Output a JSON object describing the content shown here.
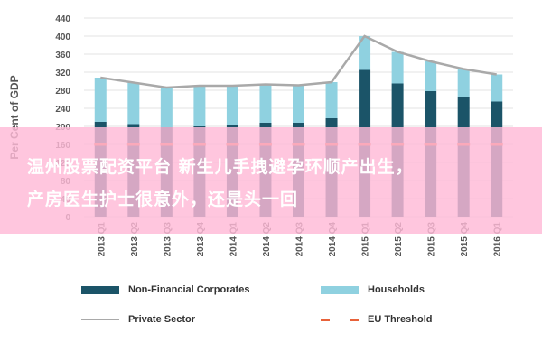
{
  "chart_data": {
    "type": "bar",
    "ylabel": "Per Cent of GDP",
    "ylim": [
      0,
      440
    ],
    "yticks": [
      0,
      40,
      80,
      120,
      160,
      200,
      240,
      280,
      320,
      360,
      400,
      440
    ],
    "categories": [
      "2013 Q1",
      "2013 Q2",
      "2013 Q3",
      "2013 Q4",
      "2014 Q1",
      "2014 Q2",
      "2014 Q3",
      "2014 Q4",
      "2015 Q1",
      "2015 Q2",
      "2015 Q3",
      "2015 Q4",
      "2016 Q1"
    ],
    "series": [
      {
        "name": "Non-Financial Corporates",
        "type": "bar",
        "stack": "private",
        "color": "#1b5468",
        "values": [
          210,
          205,
          198,
          200,
          202,
          208,
          208,
          218,
          325,
          295,
          278,
          265,
          255
        ]
      },
      {
        "name": "Households",
        "type": "bar",
        "stack": "private",
        "color": "#8fd1e0",
        "values": [
          98,
          92,
          88,
          90,
          88,
          85,
          83,
          80,
          75,
          70,
          66,
          62,
          60
        ]
      },
      {
        "name": "Private Sector",
        "type": "line",
        "color": "#a9a9a9",
        "values": [
          308,
          297,
          286,
          290,
          290,
          293,
          291,
          298,
          400,
          365,
          344,
          327,
          315
        ]
      },
      {
        "name": "EU Threshold",
        "type": "dashed",
        "color": "#e8623a",
        "values": [
          160,
          160,
          160,
          160,
          160,
          160,
          160,
          160,
          160,
          160,
          160,
          160,
          160
        ]
      }
    ]
  },
  "overlay": {
    "line1": "温州股票配资平台 新生儿手拽避孕环顺产出生，",
    "line2": "产房医生护士很意外，还是头一回"
  },
  "legend": {
    "nfc": "Non-Financial Corporates",
    "households": "Households",
    "private": "Private Sector",
    "eu": "EU Threshold"
  }
}
